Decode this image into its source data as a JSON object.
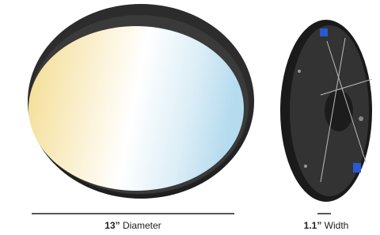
{
  "dimensions": [
    {
      "value_text": "13”",
      "label": "Diameter"
    },
    {
      "value_text": "1.1”",
      "label": "Width"
    }
  ]
}
